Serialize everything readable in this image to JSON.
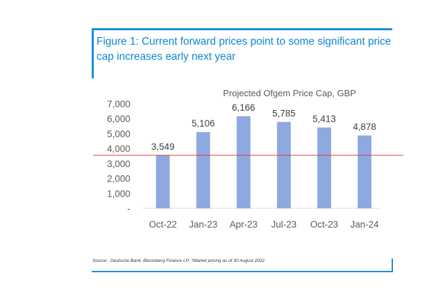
{
  "figure": {
    "title": "Figure 1: Current forward prices point to some significant price cap increases early next year",
    "source": "Source : Deutsche Bank, Bloomberg Finance LP; *Market pricing as of 30 August 2022"
  },
  "colors": {
    "accent": "#1a8fd6",
    "bar": "#8ea9e0",
    "reference_line": "#e03a3a",
    "axis_text": "#595959"
  },
  "chart_data": {
    "type": "bar",
    "title": "Projected Ofgem Price Cap, GBP",
    "categories": [
      "Oct-22",
      "Jan-23",
      "Apr-23",
      "Jul-23",
      "Oct-23",
      "Jan-24"
    ],
    "values": [
      3549,
      5106,
      6166,
      5785,
      5413,
      4878
    ],
    "value_labels": [
      "3,549",
      "5,106",
      "6,166",
      "5,785",
      "5,413",
      "4,878"
    ],
    "y_ticks": [
      0,
      1000,
      2000,
      3000,
      4000,
      5000,
      6000,
      7000
    ],
    "y_tick_labels": [
      "-",
      "1,000",
      "2,000",
      "3,000",
      "4,000",
      "5,000",
      "6,000",
      "7,000"
    ],
    "ylim": [
      0,
      7000
    ],
    "reference_line_value": 3549,
    "xlabel": "",
    "ylabel": "",
    "grid": false
  }
}
